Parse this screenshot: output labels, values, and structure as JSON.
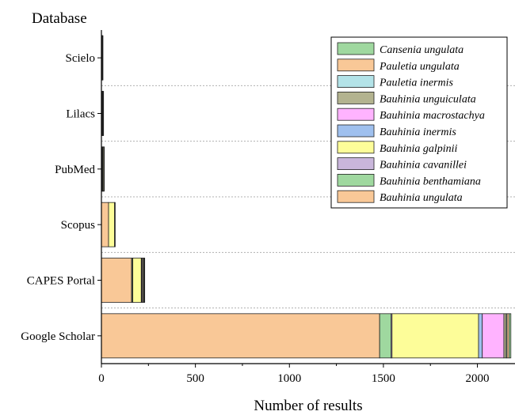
{
  "chart_data": {
    "type": "bar",
    "orientation": "horizontal",
    "stacked": true,
    "ylabel": "Database",
    "xlabel": "Number of results",
    "xlim": [
      0,
      2200
    ],
    "xticks": [
      0,
      500,
      1000,
      1500,
      2000
    ],
    "grid": "horizontal dashed",
    "legend_position": "top-right",
    "categories": [
      "Scielo",
      "Lilacs",
      "PubMed",
      "Scopus",
      "CAPES Portal",
      "Google Scholar"
    ],
    "series": [
      {
        "name": "Bauhinia ungulata",
        "color": "#F9C897",
        "values": [
          2,
          4,
          4,
          38,
          160,
          1480
        ]
      },
      {
        "name": "Bauhinia benthamiana",
        "color": "#9FD89F",
        "values": [
          0,
          0,
          0,
          0,
          5,
          60
        ]
      },
      {
        "name": "Bauhinia cavanillei",
        "color": "#C9B6DB",
        "values": [
          0,
          0,
          0,
          0,
          2,
          6
        ]
      },
      {
        "name": "Bauhinia galpinii",
        "color": "#FDFD99",
        "values": [
          1,
          1,
          3,
          32,
          45,
          460
        ]
      },
      {
        "name": "Bauhinia inermis",
        "color": "#9FC0EE",
        "values": [
          0,
          0,
          0,
          0,
          2,
          20
        ]
      },
      {
        "name": "Bauhinia macrostachya",
        "color": "#FFB3FF",
        "values": [
          0,
          0,
          0,
          0,
          4,
          115
        ]
      },
      {
        "name": "Bauhinia unguiculata",
        "color": "#B3B38F",
        "values": [
          2,
          3,
          5,
          2,
          6,
          12
        ]
      },
      {
        "name": "Pauletia inermis",
        "color": "#B3E3E8",
        "values": [
          0,
          0,
          0,
          0,
          1,
          5
        ]
      },
      {
        "name": "Pauletia ungulata",
        "color": "#F9C897",
        "values": [
          1,
          1,
          2,
          0,
          2,
          10
        ]
      },
      {
        "name": "Cansenia ungulata",
        "color": "#9FD89F",
        "values": [
          0,
          0,
          0,
          0,
          1,
          10
        ]
      }
    ]
  }
}
